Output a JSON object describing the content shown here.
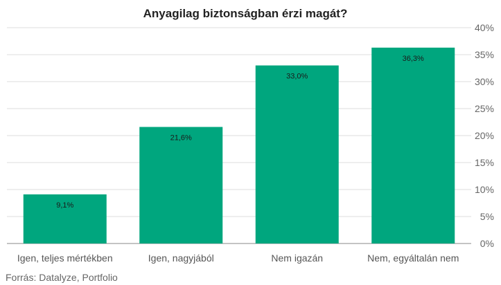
{
  "chart_data": {
    "type": "bar",
    "title": "Anyagilag biztonságban érzi magát?",
    "categories": [
      "Igen, teljes mértékben",
      "Igen, nagyjából",
      "Nem igazán",
      "Nem, egyáltalán nem"
    ],
    "values": [
      9.1,
      21.6,
      33.0,
      36.3
    ],
    "data_labels": [
      "9,1%",
      "21,6%",
      "33,0%",
      "36,3%"
    ],
    "ylim": [
      0,
      40
    ],
    "y_ticks": [
      0,
      5,
      10,
      15,
      20,
      25,
      30,
      35,
      40
    ],
    "y_tick_labels": [
      "0%",
      "5%",
      "10%",
      "15%",
      "20%",
      "25%",
      "30%",
      "35%",
      "40%"
    ],
    "y_axis_position": "right",
    "grid": true,
    "bar_color": "#00a67e",
    "xlabel": "",
    "ylabel": ""
  },
  "source": "Forrás: Datalyze, Portfolio"
}
